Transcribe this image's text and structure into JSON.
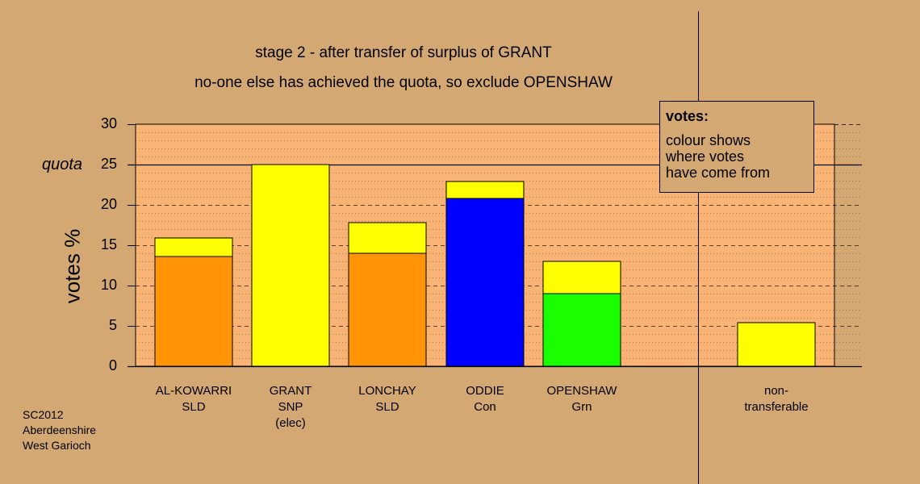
{
  "chart_data": {
    "type": "bar",
    "stacked": true,
    "title": "stage 2 - after transfer of surplus of GRANT",
    "subtitle": "no-one else has achieved the quota, so exclude OPENSHAW",
    "ylabel": "votes %",
    "ylim": [
      0,
      30
    ],
    "yticks": [
      "0",
      "5",
      "10",
      "15",
      "20",
      "25",
      "30"
    ],
    "quota": 25,
    "quota_label": "quota",
    "grid": true,
    "categories": [
      {
        "name": "AL-KOWARRI",
        "party": "SLD",
        "note": ""
      },
      {
        "name": "GRANT",
        "party": "SNP",
        "note": "(elec)"
      },
      {
        "name": "LONCHAY",
        "party": "SLD",
        "note": ""
      },
      {
        "name": "ODDIE",
        "party": "Con",
        "note": ""
      },
      {
        "name": "OPENSHAW",
        "party": "Grn",
        "note": ""
      }
    ],
    "bars": [
      {
        "segments": [
          {
            "value": 13.6,
            "color": "#ff9405"
          },
          {
            "value": 2.3,
            "color": "#ffff00"
          }
        ]
      },
      {
        "segments": [
          {
            "value": 25.0,
            "color": "#ffff00"
          }
        ]
      },
      {
        "segments": [
          {
            "value": 14.0,
            "color": "#ff9405"
          },
          {
            "value": 3.8,
            "color": "#ffff00"
          }
        ]
      },
      {
        "segments": [
          {
            "value": 20.8,
            "color": "#0000ff"
          },
          {
            "value": 2.1,
            "color": "#ffff00"
          }
        ]
      },
      {
        "segments": [
          {
            "value": 9.0,
            "color": "#1aff00"
          },
          {
            "value": 4.0,
            "color": "#ffff00"
          }
        ]
      }
    ],
    "non_transferable": {
      "label": "non-\ntransferable",
      "value": 5.4,
      "color": "#ffff00"
    },
    "plot_bg": "#f9b475"
  },
  "legend": {
    "title": "votes:",
    "text": "colour shows\nwhere votes\nhave come from"
  },
  "footnote": "SC2012\nAberdeenshire\nWest Garioch"
}
